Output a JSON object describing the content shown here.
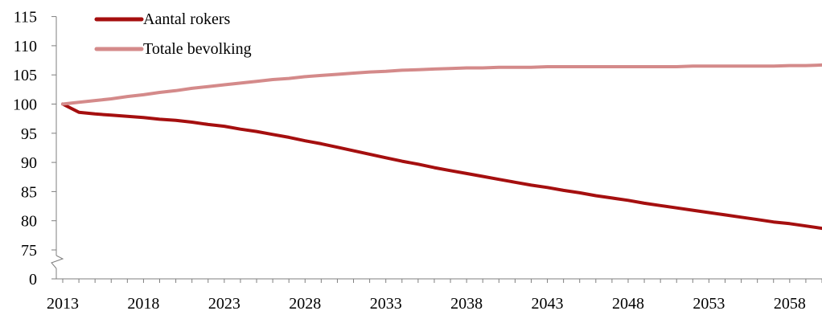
{
  "chart_data": {
    "type": "line",
    "x": [
      2013,
      2014,
      2015,
      2016,
      2017,
      2018,
      2019,
      2020,
      2021,
      2022,
      2023,
      2024,
      2025,
      2026,
      2027,
      2028,
      2029,
      2030,
      2031,
      2032,
      2033,
      2034,
      2035,
      2036,
      2037,
      2038,
      2039,
      2040,
      2041,
      2042,
      2043,
      2044,
      2045,
      2046,
      2047,
      2048,
      2049,
      2050,
      2051,
      2052,
      2053,
      2054,
      2055,
      2056,
      2057,
      2058,
      2059,
      2060
    ],
    "series": [
      {
        "name": "Aantal rokers",
        "color": "#a50f0f",
        "values": [
          100,
          98.6,
          98.3,
          98.1,
          97.9,
          97.7,
          97.4,
          97.2,
          96.9,
          96.5,
          96.2,
          95.7,
          95.3,
          94.8,
          94.3,
          93.7,
          93.2,
          92.6,
          92.0,
          91.4,
          90.8,
          90.2,
          89.7,
          89.1,
          88.6,
          88.1,
          87.6,
          87.1,
          86.6,
          86.1,
          85.7,
          85.2,
          84.8,
          84.3,
          83.9,
          83.5,
          83.0,
          82.6,
          82.2,
          81.8,
          81.4,
          81.0,
          80.6,
          80.2,
          79.8,
          79.5,
          79.1,
          78.7
        ]
      },
      {
        "name": "Totale bevolking",
        "color": "#d48a8a",
        "values": [
          100,
          100.3,
          100.6,
          100.9,
          101.3,
          101.6,
          102.0,
          102.3,
          102.7,
          103.0,
          103.3,
          103.6,
          103.9,
          104.2,
          104.4,
          104.7,
          104.9,
          105.1,
          105.3,
          105.5,
          105.6,
          105.8,
          105.9,
          106.0,
          106.1,
          106.2,
          106.2,
          106.3,
          106.3,
          106.3,
          106.4,
          106.4,
          106.4,
          106.4,
          106.4,
          106.4,
          106.4,
          106.4,
          106.4,
          106.5,
          106.5,
          106.5,
          106.5,
          106.5,
          106.5,
          106.6,
          106.6,
          106.7
        ]
      }
    ],
    "y_ticks": [
      0,
      75,
      80,
      85,
      90,
      95,
      100,
      105,
      110,
      115
    ],
    "x_tick_labels": [
      2013,
      2018,
      2023,
      2028,
      2033,
      2038,
      2043,
      2048,
      2053,
      2058
    ],
    "y_axis_break": [
      0,
      75
    ],
    "ylim": [
      73,
      115
    ],
    "xlim": [
      2013,
      2060
    ],
    "grid": false,
    "legend_position": "top-left"
  }
}
